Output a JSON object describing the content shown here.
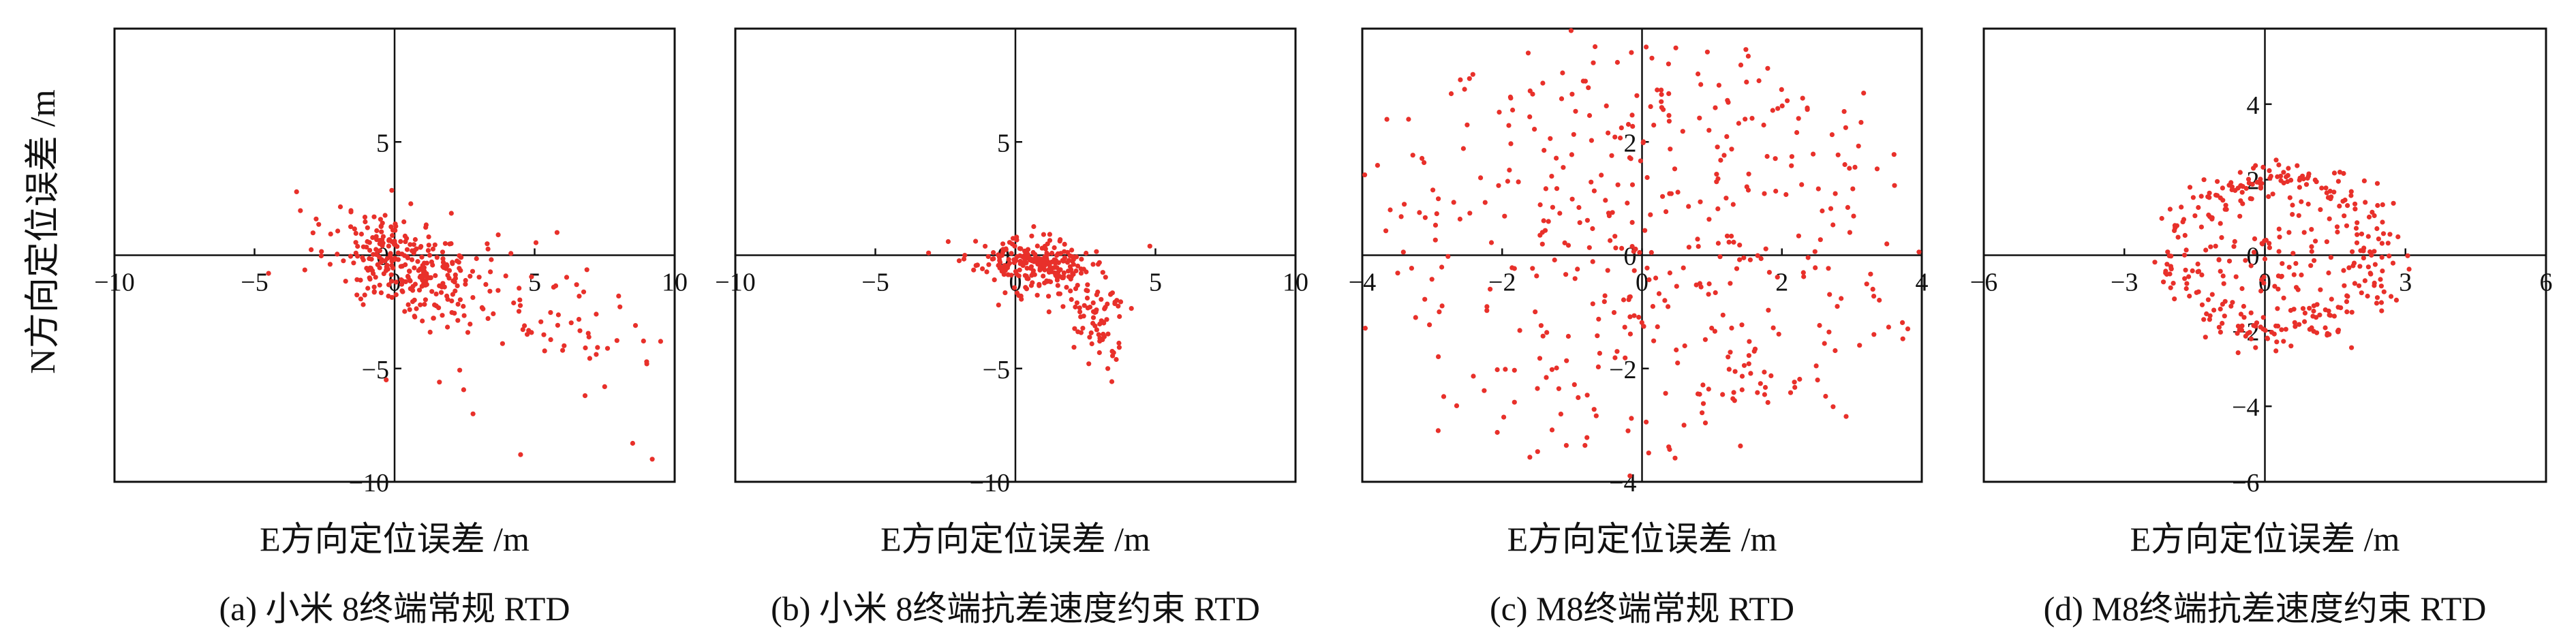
{
  "figure": {
    "ylabel": "N方向定位误差 /m"
  },
  "colors": {
    "points": "#e8302a",
    "axes": "#111111"
  },
  "chart_data": [
    {
      "type": "scatter",
      "caption": "(a) 小米 8终端常规 RTD",
      "xlabel": "E方向定位误差 /m",
      "ylabel": "N方向定位误差 /m",
      "xlim": [
        -10,
        10
      ],
      "ylim": [
        -10,
        10
      ],
      "xticks": [
        -10,
        -5,
        0,
        5,
        10
      ],
      "yticks": [
        -10,
        -5,
        0,
        5
      ],
      "grid": false,
      "seed": 11,
      "clusters": [
        {
          "n": 260,
          "cx": 0.3,
          "cy": -0.3,
          "sx": 1.3,
          "sy": 1.1,
          "rho": -0.45
        },
        {
          "n": 90,
          "cx": 4.0,
          "cy": -2.2,
          "sx": 2.3,
          "sy": 1.5,
          "rho": -0.4
        }
      ],
      "points": [
        [
          -3.5,
          2.8
        ],
        [
          -4.5,
          -0.8
        ],
        [
          -2.8,
          1.6
        ],
        [
          6.5,
          -1.3
        ],
        [
          9.5,
          -3.8
        ],
        [
          8.6,
          -3.1
        ],
        [
          9.0,
          -4.7
        ],
        [
          8.5,
          -8.3
        ],
        [
          9.2,
          -9.0
        ],
        [
          6.8,
          -6.2
        ],
        [
          4.5,
          -8.8
        ],
        [
          7.5,
          -5.8
        ],
        [
          5.8,
          1.0
        ],
        [
          3.7,
          0.9
        ],
        [
          1.6,
          -5.6
        ],
        [
          -0.3,
          -5.5
        ],
        [
          6.0,
          -4.2
        ],
        [
          7.2,
          -2.6
        ],
        [
          2.8,
          -7.0
        ],
        [
          8.0,
          -1.8
        ]
      ]
    },
    {
      "type": "scatter",
      "caption": "(b) 小米 8终端抗差速度约束 RTD",
      "xlabel": "E方向定位误差 /m",
      "ylabel": "N方向定位误差 /m",
      "xlim": [
        -10,
        10
      ],
      "ylim": [
        -10,
        10
      ],
      "xticks": [
        -10,
        -5,
        0,
        5,
        10
      ],
      "yticks": [
        -10,
        -5,
        0,
        5
      ],
      "grid": false,
      "seed": 23,
      "clusters": [
        {
          "n": 230,
          "cx": 0.7,
          "cy": -0.4,
          "sx": 1.0,
          "sy": 0.55,
          "rho": -0.2
        },
        {
          "n": 70,
          "cx": 2.8,
          "cy": -2.6,
          "sx": 0.55,
          "sy": 1.0,
          "rho": -0.3
        }
      ],
      "points": [
        [
          -2.4,
          0.6
        ],
        [
          -3.1,
          0.1
        ],
        [
          4.8,
          0.4
        ],
        [
          3.6,
          -4.6
        ],
        [
          3.3,
          -5.0
        ],
        [
          3.0,
          -4.3
        ],
        [
          2.2,
          -2.1
        ],
        [
          1.2,
          -2.5
        ],
        [
          -0.6,
          -2.2
        ],
        [
          0.2,
          -1.8
        ]
      ]
    },
    {
      "type": "scatter",
      "caption": "(c) M8终端常规 RTD",
      "xlabel": "E方向定位误差 /m",
      "ylabel": "N方向定位误差 /m",
      "xlim": [
        -4,
        4
      ],
      "ylim": [
        -4,
        4
      ],
      "xticks": [
        -4,
        -2,
        0,
        2,
        4
      ],
      "yticks": [
        -4,
        -2,
        0,
        2
      ],
      "grid": false,
      "seed": 37,
      "rings": [
        {
          "n": 260,
          "cx": 0.15,
          "cy": 0.2,
          "rx": 2.9,
          "ry": 2.9,
          "spread": 0.7
        },
        {
          "n": 170,
          "cx": 0.2,
          "cy": 0.3,
          "rx": 1.4,
          "ry": 1.5,
          "spread": 0.6
        }
      ],
      "points": [
        [
          -3.6,
          0.8
        ],
        [
          -3.4,
          0.9
        ],
        [
          3.3,
          -0.6
        ],
        [
          3.5,
          0.2
        ],
        [
          3.8,
          -1.3
        ],
        [
          -2.9,
          -1.0
        ],
        [
          0.8,
          3.2
        ],
        [
          1.1,
          3.0
        ],
        [
          -1.6,
          2.9
        ],
        [
          2.9,
          1.6
        ],
        [
          -0.2,
          -3.1
        ],
        [
          0.6,
          -3.0
        ],
        [
          -2.5,
          2.3
        ],
        [
          1.8,
          -2.6
        ]
      ]
    },
    {
      "type": "scatter",
      "caption": "(d) M8终端抗差速度约束 RTD",
      "xlabel": "E方向定位误差 /m",
      "ylabel": "N方向定位误差 /m",
      "xlim": [
        -6,
        6
      ],
      "ylim": [
        -6,
        6
      ],
      "xticks": [
        -6,
        -3,
        0,
        3,
        6
      ],
      "yticks": [
        -6,
        -4,
        -2,
        0,
        2,
        4
      ],
      "grid": false,
      "seed": 53,
      "rings": [
        {
          "n": 300,
          "cx": 0.35,
          "cy": 0.0,
          "rx": 2.1,
          "ry": 2.0,
          "spread": 0.32
        },
        {
          "n": 60,
          "cx": 0.4,
          "cy": -0.2,
          "rx": 1.0,
          "ry": 1.0,
          "spread": 0.45
        }
      ],
      "points": [
        [
          -1.6,
          1.8
        ],
        [
          -1.3,
          2.0
        ],
        [
          0.5,
          2.3
        ],
        [
          1.6,
          2.2
        ],
        [
          2.4,
          1.9
        ],
        [
          0.1,
          0.2
        ],
        [
          0.3,
          0.1
        ],
        [
          0.6,
          0.05
        ],
        [
          1.0,
          0.1
        ],
        [
          0.0,
          -0.1
        ]
      ]
    }
  ]
}
